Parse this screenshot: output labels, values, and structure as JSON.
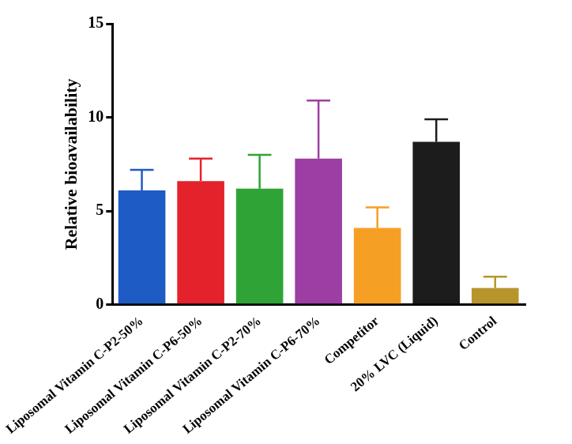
{
  "chart_data": {
    "type": "bar",
    "y_label": "Relative bioavailability",
    "categories": [
      "Liposomal Vitamin C-P2-50%",
      "Liposomal Vitamin C-P6-50%",
      "Liposomal Vitamin C-P2-70%",
      "Liposomal Vitamin C-P6-70%",
      "Competitor",
      "20% LVC (Liquid)",
      "Control"
    ],
    "values": [
      6.1,
      6.6,
      6.2,
      7.8,
      4.1,
      8.7,
      0.9
    ],
    "errors": [
      1.1,
      1.2,
      1.8,
      3.1,
      1.1,
      1.2,
      0.6
    ],
    "colors": [
      "#1f5bc4",
      "#e3222b",
      "#2fa336",
      "#9c3ea3",
      "#f5a025",
      "#1c1c1c",
      "#b8952c"
    ],
    "ylim": [
      0,
      15
    ],
    "yticks": [
      0,
      5,
      10,
      15
    ],
    "grid": false
  }
}
